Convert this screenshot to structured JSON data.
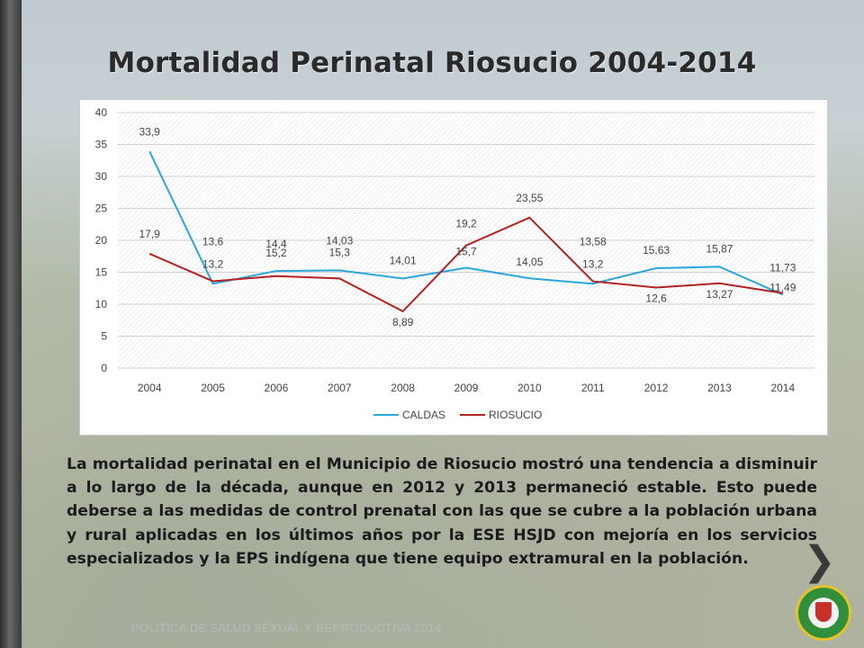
{
  "slide": {
    "title": "Mortalidad Perinatal Riosucio 2004-2014",
    "body": "La mortalidad perinatal en el Municipio de Riosucio mostró una tendencia a disminuir a lo largo de la década, aunque en 2012 y 2013 permaneció estable. Esto puede deberse a las medidas de control prenatal  con las que se cubre a la población urbana y rural aplicadas en los últimos años por la ESE HSJD con mejoría en los servicios  especializados y la EPS indígena que tiene equipo extramural en la población.",
    "footer": "POLITICA DE SALUD SEXUAL Y REPRODUCTIVA 2014",
    "next_glyph": "❯"
  },
  "colors": {
    "caldas": "#2aa6dc",
    "riosucio": "#b22222"
  },
  "chart_data": {
    "type": "line",
    "title": "",
    "xlabel": "",
    "ylabel": "",
    "x": [
      "2004",
      "2005",
      "2006",
      "2007",
      "2008",
      "2009",
      "2010",
      "2011",
      "2012",
      "2013",
      "2014"
    ],
    "ylim": [
      0,
      40
    ],
    "yticks": [
      0,
      5,
      10,
      15,
      20,
      25,
      30,
      35,
      40
    ],
    "grid": true,
    "legend": "bottom",
    "series": [
      {
        "name": "CALDAS",
        "values": [
          33.9,
          13.2,
          15.2,
          15.3,
          14.01,
          15.7,
          14.05,
          13.2,
          15.63,
          15.87,
          11.49
        ],
        "labels": [
          "33,9",
          "13,2",
          "15,2",
          "15,3",
          "14,01",
          "15,7",
          "14,05",
          "13,2",
          "15,63",
          "15,87",
          "11,49"
        ]
      },
      {
        "name": "RIOSUCIO",
        "values": [
          17.9,
          13.6,
          14.4,
          14.03,
          8.89,
          19.2,
          23.55,
          13.58,
          12.6,
          13.27,
          11.73
        ],
        "labels": [
          "17,9",
          "13,6",
          "14,4",
          "14,03",
          "8,89",
          "19,2",
          "23,55",
          "13,58",
          "12,6",
          "13,27",
          "11,73"
        ]
      }
    ]
  }
}
